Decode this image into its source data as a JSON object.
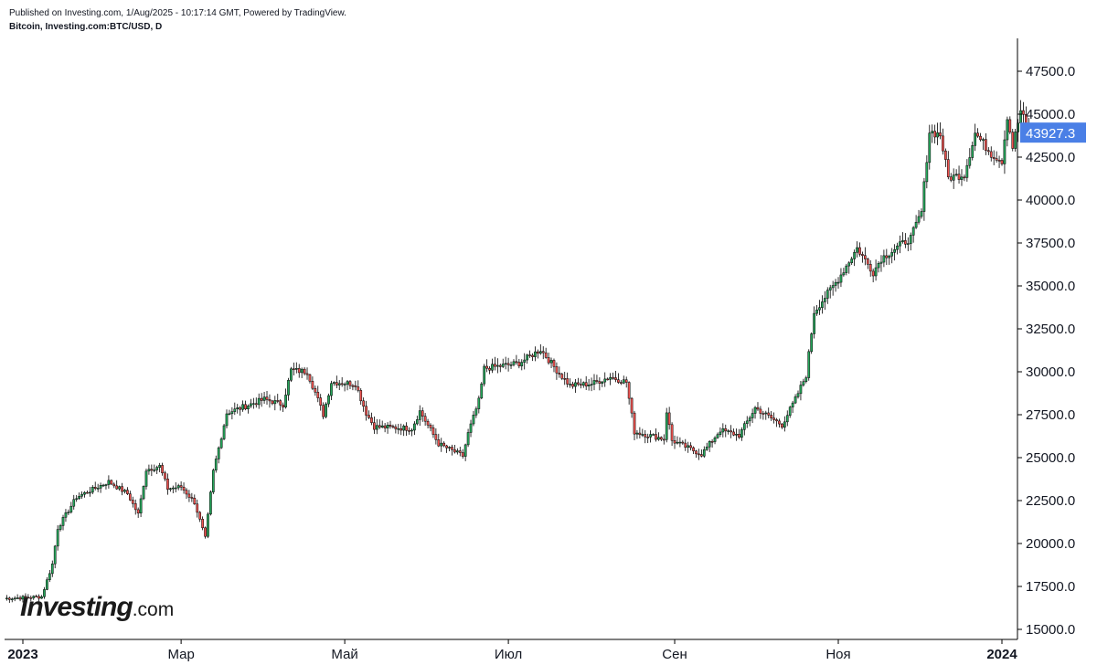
{
  "header": {
    "published": "Published on Investing.com, 1/Aug/2025 - 10:17:14 GMT, Powered by TradingView.",
    "symbol": "Bitcoin, Investing.com:BTC/USD, D"
  },
  "logo": {
    "brand": "Investing",
    "tld": ".com"
  },
  "colors": {
    "up": "#26a65b",
    "down": "#ef5350",
    "wick": "#000000",
    "price_tag": "#4a7fe6",
    "axis": "#000000"
  },
  "chart_data": {
    "type": "candlestick",
    "title": "Bitcoin, Investing.com:BTC/USD, D",
    "timeframe": "D",
    "ylim": [
      14600,
      49200
    ],
    "y_ticks": [
      15000,
      17500,
      20000,
      22500,
      25000,
      27500,
      30000,
      32500,
      35000,
      37500,
      40000,
      42500,
      45000,
      47500
    ],
    "y_tick_labels": [
      "15000.0",
      "17500.0",
      "20000.0",
      "22500.0",
      "25000.0",
      "27500.0",
      "30000.0",
      "32500.0",
      "35000.0",
      "37500.0",
      "40000.0",
      "42500.0",
      "45000.0",
      "47500.0"
    ],
    "x_labels": [
      {
        "label": "2023",
        "date": "2023-01-01",
        "bold": true
      },
      {
        "label": "Мар",
        "date": "2023-03-01",
        "bold": false
      },
      {
        "label": "Май",
        "date": "2023-05-01",
        "bold": false
      },
      {
        "label": "Июл",
        "date": "2023-07-01",
        "bold": false
      },
      {
        "label": "Сен",
        "date": "2023-09-01",
        "bold": false
      },
      {
        "label": "Ноя",
        "date": "2023-11-01",
        "bold": false
      },
      {
        "label": "2024",
        "date": "2024-01-01",
        "bold": true
      }
    ],
    "date_range": [
      "2022-12-25",
      "2024-01-11"
    ],
    "last_price": 43927.3,
    "last_price_label": "43927.3",
    "close_path": [
      [
        "2022-12-25",
        16800
      ],
      [
        "2023-01-08",
        16900
      ],
      [
        "2023-01-12",
        18800
      ],
      [
        "2023-01-14",
        20900
      ],
      [
        "2023-01-21",
        22700
      ],
      [
        "2023-02-02",
        23600
      ],
      [
        "2023-02-09",
        22900
      ],
      [
        "2023-02-13",
        21700
      ],
      [
        "2023-02-16",
        24300
      ],
      [
        "2023-02-21",
        24500
      ],
      [
        "2023-02-24",
        23200
      ],
      [
        "2023-03-01",
        23300
      ],
      [
        "2023-03-06",
        22400
      ],
      [
        "2023-03-10",
        20300
      ],
      [
        "2023-03-13",
        24200
      ],
      [
        "2023-03-18",
        27600
      ],
      [
        "2023-04-01",
        28400
      ],
      [
        "2023-04-08",
        28100
      ],
      [
        "2023-04-11",
        30100
      ],
      [
        "2023-04-17",
        30000
      ],
      [
        "2023-04-20",
        28800
      ],
      [
        "2023-04-23",
        27500
      ],
      [
        "2023-04-26",
        29400
      ],
      [
        "2023-05-05",
        29300
      ],
      [
        "2023-05-09",
        27600
      ],
      [
        "2023-05-12",
        26800
      ],
      [
        "2023-05-26",
        26700
      ],
      [
        "2023-05-29",
        27700
      ],
      [
        "2023-06-05",
        25800
      ],
      [
        "2023-06-14",
        25100
      ],
      [
        "2023-06-16",
        26400
      ],
      [
        "2023-06-20",
        28300
      ],
      [
        "2023-06-22",
        30200
      ],
      [
        "2023-07-05",
        30500
      ],
      [
        "2023-07-13",
        31300
      ],
      [
        "2023-07-20",
        29900
      ],
      [
        "2023-07-24",
        29200
      ],
      [
        "2023-08-01",
        29300
      ],
      [
        "2023-08-08",
        29700
      ],
      [
        "2023-08-14",
        29400
      ],
      [
        "2023-08-17",
        26500
      ],
      [
        "2023-08-28",
        26100
      ],
      [
        "2023-08-29",
        27700
      ],
      [
        "2023-08-31",
        26000
      ],
      [
        "2023-09-11",
        25200
      ],
      [
        "2023-09-18",
        26600
      ],
      [
        "2023-09-25",
        26300
      ],
      [
        "2023-10-01",
        27900
      ],
      [
        "2023-10-11",
        26900
      ],
      [
        "2023-10-16",
        28400
      ],
      [
        "2023-10-20",
        29800
      ],
      [
        "2023-10-23",
        33500
      ],
      [
        "2023-11-01",
        35400
      ],
      [
        "2023-11-08",
        37200
      ],
      [
        "2023-11-14",
        35800
      ],
      [
        "2023-11-17",
        36600
      ],
      [
        "2023-11-28",
        37800
      ],
      [
        "2023-12-02",
        39300
      ],
      [
        "2023-12-05",
        44000
      ],
      [
        "2023-12-09",
        43800
      ],
      [
        "2023-12-12",
        41300
      ],
      [
        "2023-12-18",
        41500
      ],
      [
        "2023-12-22",
        43900
      ],
      [
        "2023-12-28",
        42700
      ],
      [
        "2024-01-01",
        42300
      ],
      [
        "2024-01-03",
        44900
      ],
      [
        "2024-01-05",
        43100
      ],
      [
        "2024-01-08",
        45200
      ],
      [
        "2024-01-11",
        43927.3
      ]
    ]
  }
}
